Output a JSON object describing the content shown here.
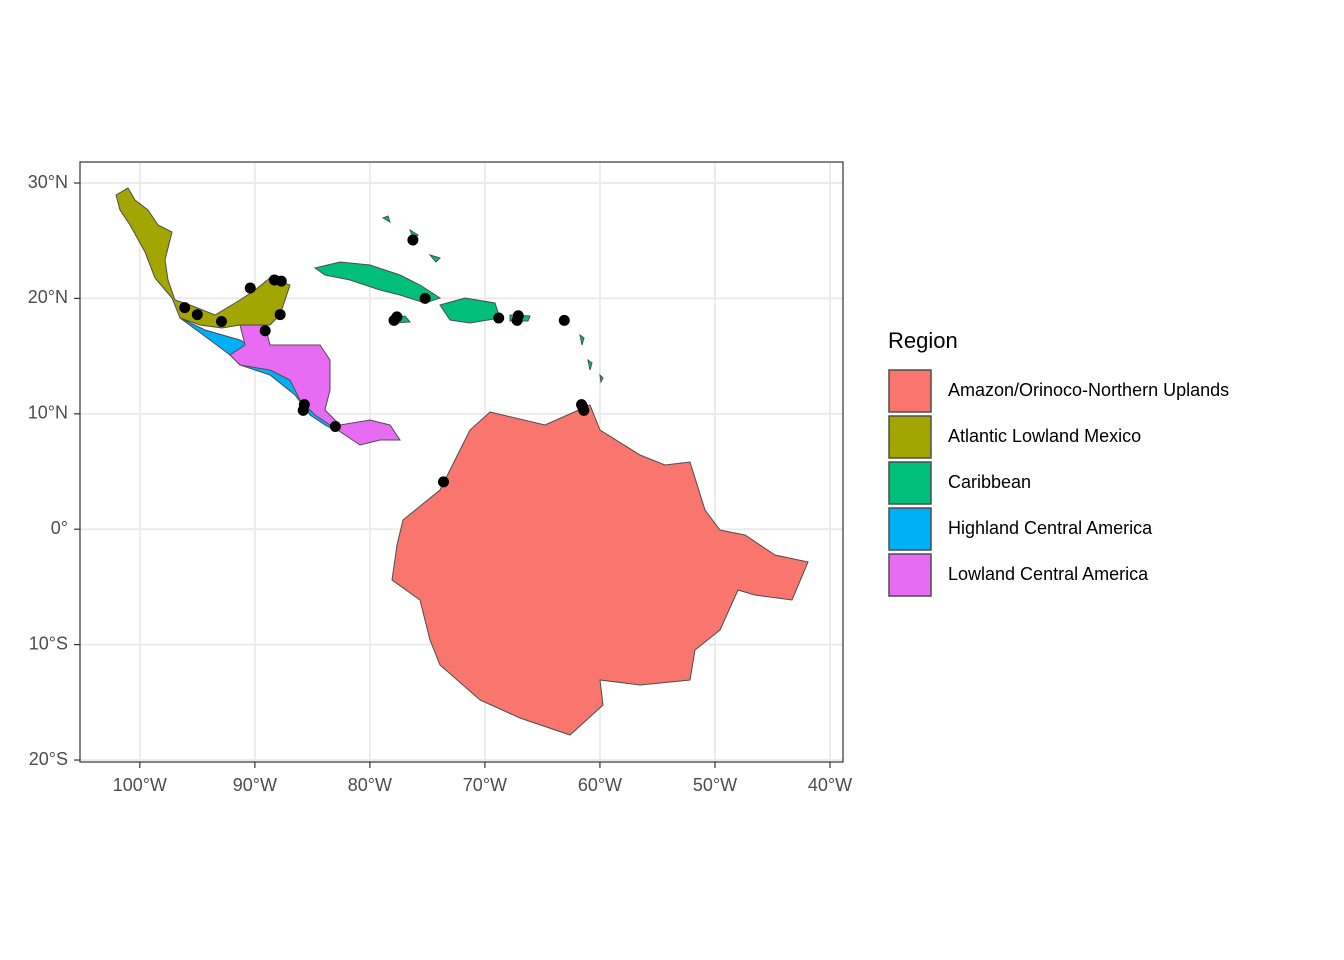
{
  "chart_data": {
    "type": "map",
    "xlim": [
      -105.2,
      -38.87
    ],
    "ylim": [
      -20.17,
      31.82
    ],
    "xticks": [
      {
        "value": -100,
        "label": "100°W"
      },
      {
        "value": -90,
        "label": "90°W"
      },
      {
        "value": -80,
        "label": "80°W"
      },
      {
        "value": -70,
        "label": "70°W"
      },
      {
        "value": -60,
        "label": "60°W"
      },
      {
        "value": -50,
        "label": "50°W"
      },
      {
        "value": -40,
        "label": "40°W"
      }
    ],
    "yticks": [
      {
        "value": -20,
        "label": "20°S"
      },
      {
        "value": -10,
        "label": "10°S"
      },
      {
        "value": 0,
        "label": "0°"
      },
      {
        "value": 10,
        "label": "10°N"
      },
      {
        "value": 20,
        "label": "20°N"
      },
      {
        "value": 30,
        "label": "30°N"
      }
    ],
    "grid": true,
    "legend": {
      "title": "Region",
      "position": "right",
      "items": [
        {
          "name": "Amazon/Orinoco-Northern Uplands",
          "color": "#f8766d"
        },
        {
          "name": "Atlantic Lowland Mexico",
          "color": "#a3a500"
        },
        {
          "name": "Caribbean",
          "color": "#00bf7d"
        },
        {
          "name": "Highland Central America",
          "color": "#00b0f6"
        },
        {
          "name": "Lowland Central America",
          "color": "#e76bf3"
        }
      ]
    },
    "points": {
      "color": "#000000",
      "x": [
        -76.26,
        -75.2,
        -77.9,
        -77.65,
        -68.8,
        -67.2,
        -67.1,
        -63.1,
        -61.5,
        -61.4,
        -61.6,
        -73.6,
        -96.1,
        -95.0,
        -92.9,
        -90.4,
        -88.3,
        -87.7,
        -87.8,
        -89.1,
        -85.7,
        -85.8,
        -83.0
      ],
      "y": [
        25.06,
        20.0,
        18.1,
        18.4,
        18.3,
        18.1,
        18.5,
        18.1,
        10.6,
        10.3,
        10.8,
        4.1,
        19.2,
        18.6,
        18.0,
        20.9,
        21.6,
        21.5,
        18.6,
        17.2,
        10.8,
        10.3,
        8.9
      ]
    }
  }
}
